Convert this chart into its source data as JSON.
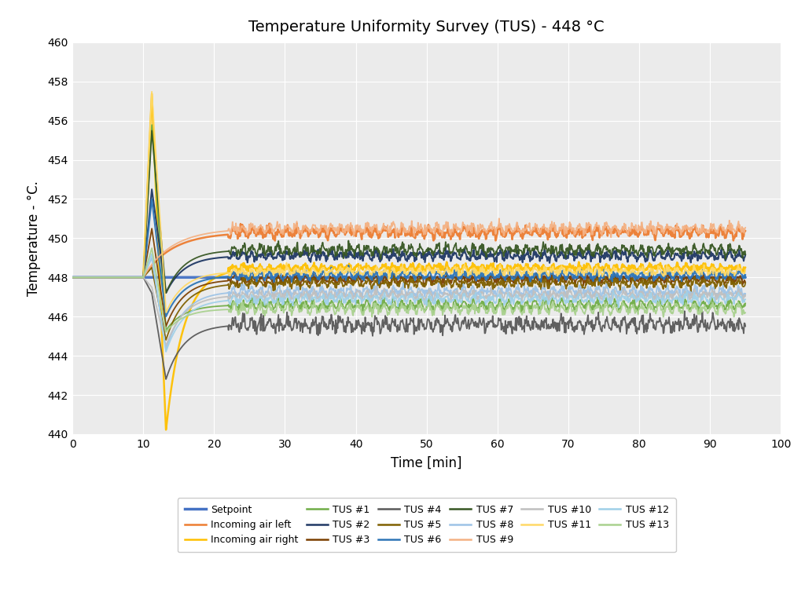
{
  "title": "Temperature Uniformity Survey (TUS) - 448 °C",
  "xlabel": "Time [min]",
  "ylabel": "Temperature - °C.",
  "xlim": [
    0,
    100
  ],
  "ylim": [
    440,
    460
  ],
  "xticks": [
    0,
    10,
    20,
    30,
    40,
    50,
    60,
    70,
    80,
    90,
    100
  ],
  "yticks": [
    440,
    442,
    444,
    446,
    448,
    450,
    452,
    454,
    456,
    458,
    460
  ],
  "background_color": "#FFFFFF",
  "plot_bg_color": "#EBEBEB",
  "series": [
    {
      "name": "Setpoint",
      "color": "#4472C4",
      "lw": 2.5,
      "flat_val": 448.0,
      "has_spike": false,
      "spike_peak": 448.0,
      "trough": 448.0,
      "steady": 448.0,
      "noise": 0.0,
      "osc_amp": 0.0
    },
    {
      "name": "Incoming air left",
      "color": "#ED7D31",
      "lw": 1.8,
      "flat_val": 448.0,
      "has_spike": false,
      "spike_peak": 448.0,
      "trough": 449.8,
      "steady": 450.3,
      "noise": 0.12,
      "osc_amp": 0.15
    },
    {
      "name": "Incoming air right",
      "color": "#FFC000",
      "lw": 1.8,
      "flat_val": 448.0,
      "has_spike": true,
      "spike_peak": 457.4,
      "trough": 440.2,
      "steady": 448.5,
      "noise": 0.08,
      "osc_amp": 0.1
    },
    {
      "name": "TUS #1",
      "color": "#70AD47",
      "lw": 1.3,
      "flat_val": 448.0,
      "has_spike": true,
      "spike_peak": 455.8,
      "trough": 445.3,
      "steady": 446.6,
      "noise": 0.1,
      "osc_amp": 0.18
    },
    {
      "name": "TUS #2",
      "color": "#1F3864",
      "lw": 1.5,
      "flat_val": 448.0,
      "has_spike": true,
      "spike_peak": 452.5,
      "trough": 447.2,
      "steady": 449.1,
      "noise": 0.1,
      "osc_amp": 0.15
    },
    {
      "name": "TUS #3",
      "color": "#7B3F00",
      "lw": 1.3,
      "flat_val": 448.0,
      "has_spike": true,
      "spike_peak": 450.5,
      "trough": 445.5,
      "steady": 447.9,
      "noise": 0.1,
      "osc_amp": 0.12
    },
    {
      "name": "TUS #4",
      "color": "#595959",
      "lw": 1.3,
      "flat_val": 448.0,
      "has_spike": true,
      "spike_peak": 447.2,
      "trough": 442.8,
      "steady": 445.6,
      "noise": 0.18,
      "osc_amp": 0.2
    },
    {
      "name": "TUS #5",
      "color": "#7F6000",
      "lw": 1.3,
      "flat_val": 448.0,
      "has_spike": true,
      "spike_peak": 448.5,
      "trough": 444.8,
      "steady": 447.7,
      "noise": 0.1,
      "osc_amp": 0.12
    },
    {
      "name": "TUS #6",
      "color": "#2E75B6",
      "lw": 1.5,
      "flat_val": 448.0,
      "has_spike": true,
      "spike_peak": 452.0,
      "trough": 446.0,
      "steady": 448.1,
      "noise": 0.1,
      "osc_amp": 0.14
    },
    {
      "name": "TUS #7",
      "color": "#375623",
      "lw": 1.3,
      "flat_val": 448.0,
      "has_spike": true,
      "spike_peak": 455.5,
      "trough": 447.2,
      "steady": 449.4,
      "noise": 0.12,
      "osc_amp": 0.18
    },
    {
      "name": "TUS #8",
      "color": "#9DC3E6",
      "lw": 1.3,
      "flat_val": 448.0,
      "has_spike": true,
      "spike_peak": 449.0,
      "trough": 444.3,
      "steady": 447.3,
      "noise": 0.1,
      "osc_amp": 0.15
    },
    {
      "name": "TUS #9",
      "color": "#F4B183",
      "lw": 1.3,
      "flat_val": 448.0,
      "has_spike": false,
      "spike_peak": 448.0,
      "trough": 449.5,
      "steady": 450.5,
      "noise": 0.12,
      "osc_amp": 0.15
    },
    {
      "name": "TUS #10",
      "color": "#BFBFBF",
      "lw": 1.3,
      "flat_val": 448.0,
      "has_spike": true,
      "spike_peak": 447.5,
      "trough": 444.5,
      "steady": 447.1,
      "noise": 0.1,
      "osc_amp": 0.12
    },
    {
      "name": "TUS #11",
      "color": "#FFD966",
      "lw": 1.3,
      "flat_val": 448.0,
      "has_spike": true,
      "spike_peak": 457.5,
      "trough": 446.2,
      "steady": 448.3,
      "noise": 0.1,
      "osc_amp": 0.12
    },
    {
      "name": "TUS #12",
      "color": "#9FD0E8",
      "lw": 1.3,
      "flat_val": 448.0,
      "has_spike": true,
      "spike_peak": 449.2,
      "trough": 444.2,
      "steady": 446.9,
      "noise": 0.1,
      "osc_amp": 0.15
    },
    {
      "name": "TUS #13",
      "color": "#A9D18E",
      "lw": 1.3,
      "flat_val": 448.0,
      "has_spike": true,
      "spike_peak": 449.5,
      "trough": 445.2,
      "steady": 446.4,
      "noise": 0.1,
      "osc_amp": 0.18
    }
  ],
  "legend_order": [
    "Setpoint",
    "Incoming air left",
    "Incoming air right",
    "TUS #1",
    "TUS #2",
    "TUS #3",
    "TUS #4",
    "TUS #5",
    "TUS #6",
    "TUS #7",
    "TUS #8",
    "TUS #9",
    "TUS #10",
    "TUS #11",
    "TUS #12",
    "TUS #13"
  ]
}
